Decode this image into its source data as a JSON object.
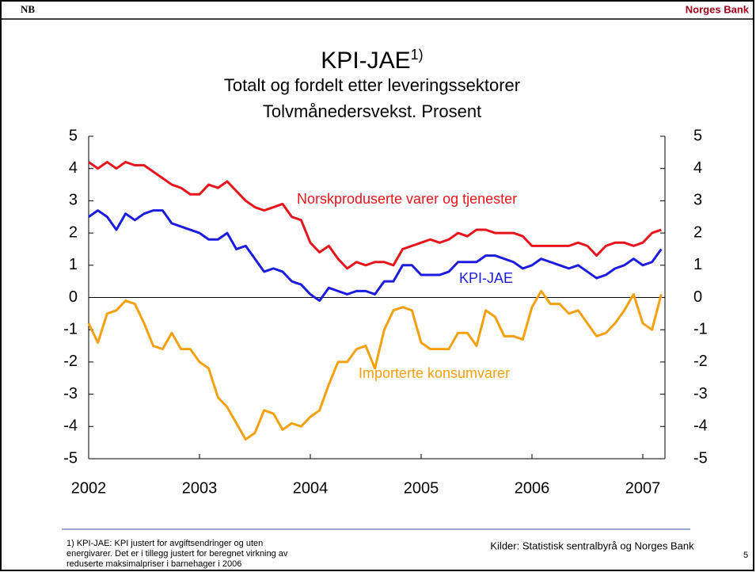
{
  "header": {
    "logo": "NB",
    "brand": "Norges Bank"
  },
  "chart_data": {
    "type": "line",
    "title": "KPI-JAE",
    "title_note": "1)",
    "subtitle": [
      "Totalt og fordelt etter leveringssektorer",
      "Tolvmånedersvekst. Prosent"
    ],
    "x": [
      2002,
      2002.083,
      2002.167,
      2002.25,
      2002.333,
      2002.417,
      2002.5,
      2002.583,
      2002.667,
      2002.75,
      2002.833,
      2002.917,
      2003,
      2003.083,
      2003.167,
      2003.25,
      2003.333,
      2003.417,
      2003.5,
      2003.583,
      2003.667,
      2003.75,
      2003.833,
      2003.917,
      2004,
      2004.083,
      2004.167,
      2004.25,
      2004.333,
      2004.417,
      2004.5,
      2004.583,
      2004.667,
      2004.75,
      2004.833,
      2004.917,
      2005,
      2005.083,
      2005.167,
      2005.25,
      2005.333,
      2005.417,
      2005.5,
      2005.583,
      2005.667,
      2005.75,
      2005.833,
      2005.917,
      2006,
      2006.083,
      2006.167,
      2006.25,
      2006.333,
      2006.417,
      2006.5,
      2006.583,
      2006.667,
      2006.75,
      2006.833,
      2006.917,
      2007,
      2007.083,
      2007.167
    ],
    "series": [
      {
        "name": "Norskproduserte varer og tjenester",
        "color": "#e8141c",
        "values": [
          4.2,
          4.0,
          4.2,
          4.0,
          4.2,
          4.1,
          4.1,
          3.9,
          3.7,
          3.5,
          3.4,
          3.2,
          3.2,
          3.5,
          3.4,
          3.6,
          3.3,
          3.0,
          2.8,
          2.7,
          2.8,
          2.9,
          2.5,
          2.4,
          1.7,
          1.4,
          1.6,
          1.2,
          0.9,
          1.1,
          1.0,
          1.1,
          1.1,
          1.0,
          1.5,
          1.6,
          1.7,
          1.8,
          1.7,
          1.8,
          2.0,
          1.9,
          2.1,
          2.1,
          2.0,
          2.0,
          2.0,
          1.9,
          1.6,
          1.6,
          1.6,
          1.6,
          1.6,
          1.7,
          1.6,
          1.3,
          1.6,
          1.7,
          1.7,
          1.6,
          1.7,
          2.0,
          2.1
        ]
      },
      {
        "name": "KPI-JAE",
        "color": "#1c1ce0",
        "values": [
          2.5,
          2.7,
          2.5,
          2.1,
          2.6,
          2.4,
          2.6,
          2.7,
          2.7,
          2.3,
          2.2,
          2.1,
          2.0,
          1.8,
          1.8,
          2.0,
          1.5,
          1.6,
          1.2,
          0.8,
          0.9,
          0.8,
          0.5,
          0.4,
          0.1,
          -0.1,
          0.3,
          0.2,
          0.1,
          0.2,
          0.2,
          0.1,
          0.5,
          0.5,
          1.0,
          1.0,
          0.7,
          0.7,
          0.7,
          0.8,
          1.1,
          1.1,
          1.1,
          1.3,
          1.3,
          1.2,
          1.1,
          0.9,
          1.0,
          1.2,
          1.1,
          1.0,
          0.9,
          1.0,
          0.8,
          0.6,
          0.7,
          0.9,
          1.0,
          1.2,
          1.0,
          1.1,
          1.5
        ]
      },
      {
        "name": "Importerte konsumvarer",
        "color": "#f5a00f",
        "values": [
          -0.8,
          -1.4,
          -0.5,
          -0.4,
          -0.1,
          -0.2,
          -0.8,
          -1.5,
          -1.6,
          -1.1,
          -1.6,
          -1.6,
          -2.0,
          -2.2,
          -3.1,
          -3.4,
          -3.9,
          -4.4,
          -4.2,
          -3.5,
          -3.6,
          -4.1,
          -3.9,
          -4.0,
          -3.7,
          -3.5,
          -2.7,
          -2.0,
          -2.0,
          -1.6,
          -1.5,
          -2.2,
          -1.0,
          -0.4,
          -0.3,
          -0.4,
          -1.4,
          -1.6,
          -1.6,
          -1.6,
          -1.1,
          -1.1,
          -1.5,
          -0.4,
          -0.6,
          -1.2,
          -1.2,
          -1.3,
          -0.3,
          0.2,
          -0.2,
          -0.2,
          -0.5,
          -0.4,
          -0.8,
          -1.2,
          -1.1,
          -0.8,
          -0.4,
          0.1,
          -0.8,
          -1.0,
          0.1
        ]
      }
    ],
    "xlim": [
      2002,
      2007.2
    ],
    "xticks": [
      2002,
      2003,
      2004,
      2005,
      2006,
      2007
    ],
    "ylim": [
      -5,
      5
    ],
    "yticks": [
      -5,
      -4,
      -3,
      -2,
      -1,
      0,
      1,
      2,
      3,
      4,
      5
    ],
    "y2lim": [
      -5,
      5
    ],
    "y2ticks": [
      -5,
      -4,
      -3,
      -2,
      -1,
      0,
      1,
      2,
      3,
      4,
      5
    ]
  },
  "footer": {
    "note": [
      "1) KPI-JAE: KPI justert for avgiftsendringer og uten",
      "energivarer. Det er i tillegg justert for beregnet virkning av",
      "reduserte maksimalpriser i barnehager i 2006"
    ],
    "source": "Kilder: Statistisk sentralbyrå og Norges Bank",
    "page": "5"
  }
}
